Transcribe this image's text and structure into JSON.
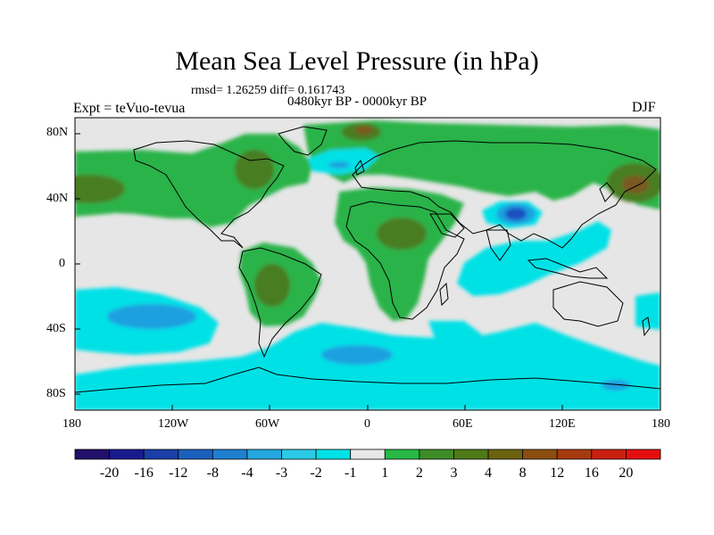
{
  "title": "Mean Sea Level Pressure (in hPa)",
  "stats": "rmsd= 1.26259 diff= 0.161743",
  "period": "0480kyr BP - 0000kyr BP",
  "experiment": "Expt = teVuo-tevua",
  "season": "DJF",
  "lat_labels": [
    "80N",
    "40N",
    "0",
    "40S",
    "80S"
  ],
  "lon_labels": [
    "180",
    "120W",
    "60W",
    "0",
    "60E",
    "120E",
    "180"
  ],
  "colorbar": {
    "labels": [
      "-20",
      "-16",
      "-12",
      "-8",
      "-4",
      "-3",
      "-2",
      "-1",
      "1",
      "2",
      "3",
      "4",
      "8",
      "12",
      "16",
      "20"
    ],
    "colors": [
      "#23106b",
      "#1a1a8f",
      "#1a3fa8",
      "#1c60bd",
      "#1f7fd0",
      "#24a7de",
      "#2bcae6",
      "#00e1e6",
      "#e8e8e8",
      "#27b845",
      "#3e8c28",
      "#4f7a18",
      "#6b6210",
      "#8b4e10",
      "#a83a10",
      "#c92010",
      "#e50e0e"
    ]
  },
  "map_colors": {
    "neutral": "#e6e6e6",
    "pos_light": "#2ab34a",
    "pos_mid": "#4a7d22",
    "pos_strong": "#7a5a20",
    "neg_light": "#00e1e6",
    "neg_mid": "#1fa0e0",
    "neg_strong": "#1c4fbf"
  }
}
